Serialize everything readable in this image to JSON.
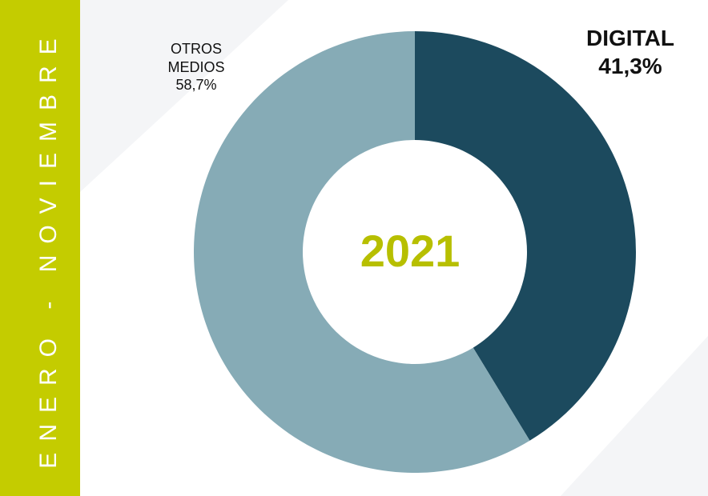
{
  "chart_data": {
    "type": "pie",
    "donut": true,
    "side_label": "ENERO - NOVIEMBRE",
    "center_label": "2021",
    "categories": [
      "DIGITAL",
      "OTROS MEDIOS"
    ],
    "values": [
      41.3,
      58.7
    ],
    "value_labels": [
      "41,3%",
      "58,7%"
    ],
    "colors": [
      "#1c4a5e",
      "#86abb6"
    ]
  }
}
